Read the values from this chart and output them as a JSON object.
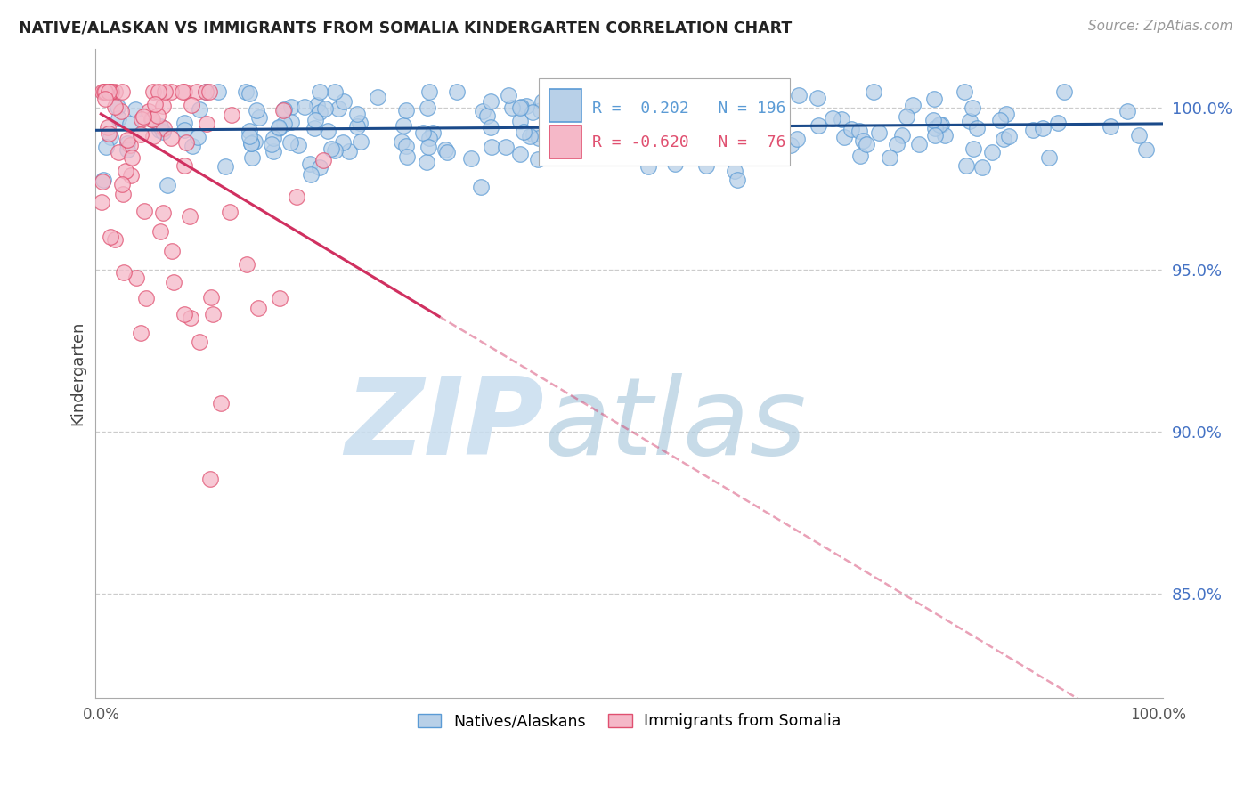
{
  "title": "NATIVE/ALASKAN VS IMMIGRANTS FROM SOMALIA KINDERGARTEN CORRELATION CHART",
  "source": "Source: ZipAtlas.com",
  "ylabel": "Kindergarten",
  "watermark_zip": "ZIP",
  "watermark_atlas": "atlas",
  "blue_R": 0.202,
  "blue_N": 196,
  "pink_R": -0.62,
  "pink_N": 76,
  "blue_face": "#b8d0e8",
  "blue_edge": "#5b9bd5",
  "pink_face": "#f5b8c8",
  "pink_edge": "#e05070",
  "blue_line_color": "#1a4a8a",
  "pink_line_color": "#d03060",
  "legend_blue": "Natives/Alaskans",
  "legend_pink": "Immigrants from Somalia",
  "ylim_min": 0.818,
  "ylim_max": 1.018,
  "xlim_min": -0.005,
  "xlim_max": 1.005,
  "yticks": [
    0.85,
    0.9,
    0.95,
    1.0
  ],
  "ytick_labels": [
    "85.0%",
    "90.0%",
    "95.0%",
    "100.0%"
  ],
  "ytick_color": "#4472c4",
  "xtick_labels": [
    "0.0%",
    "100.0%"
  ],
  "background_color": "#ffffff",
  "grid_color": "#cccccc",
  "blue_line_y_at_0": 0.993,
  "blue_line_slope": 0.002,
  "pink_line_y_at_0": 0.998,
  "pink_line_slope": -0.195
}
